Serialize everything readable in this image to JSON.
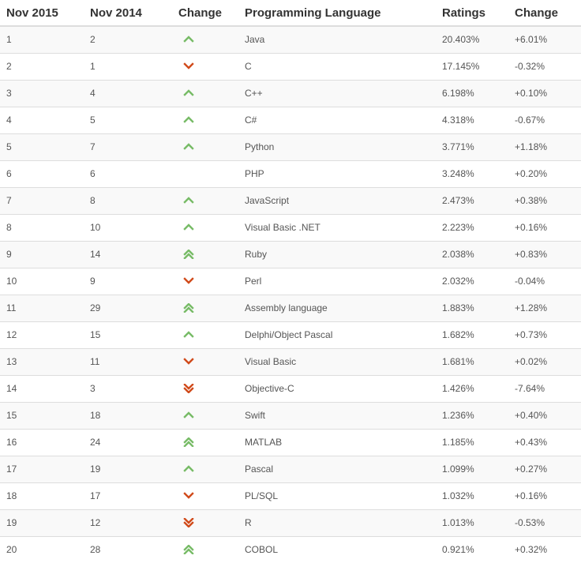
{
  "columns": [
    "Nov 2015",
    "Nov 2014",
    "Change",
    "Programming Language",
    "Ratings",
    "Change"
  ],
  "colors": {
    "up": "#77bb66",
    "down": "#d04a1a"
  },
  "rows": [
    {
      "nov2015": "1",
      "nov2014": "2",
      "trend": "up",
      "language": "Java",
      "rating": "20.403%",
      "change": "+6.01%"
    },
    {
      "nov2015": "2",
      "nov2014": "1",
      "trend": "down",
      "language": "C",
      "rating": "17.145%",
      "change": "-0.32%"
    },
    {
      "nov2015": "3",
      "nov2014": "4",
      "trend": "up",
      "language": "C++",
      "rating": "6.198%",
      "change": "+0.10%"
    },
    {
      "nov2015": "4",
      "nov2014": "5",
      "trend": "up",
      "language": "C#",
      "rating": "4.318%",
      "change": "-0.67%"
    },
    {
      "nov2015": "5",
      "nov2014": "7",
      "trend": "up",
      "language": "Python",
      "rating": "3.771%",
      "change": "+1.18%"
    },
    {
      "nov2015": "6",
      "nov2014": "6",
      "trend": "none",
      "language": "PHP",
      "rating": "3.248%",
      "change": "+0.20%"
    },
    {
      "nov2015": "7",
      "nov2014": "8",
      "trend": "up",
      "language": "JavaScript",
      "rating": "2.473%",
      "change": "+0.38%"
    },
    {
      "nov2015": "8",
      "nov2014": "10",
      "trend": "up",
      "language": "Visual Basic .NET",
      "rating": "2.223%",
      "change": "+0.16%"
    },
    {
      "nov2015": "9",
      "nov2014": "14",
      "trend": "up-double",
      "language": "Ruby",
      "rating": "2.038%",
      "change": "+0.83%"
    },
    {
      "nov2015": "10",
      "nov2014": "9",
      "trend": "down",
      "language": "Perl",
      "rating": "2.032%",
      "change": "-0.04%"
    },
    {
      "nov2015": "11",
      "nov2014": "29",
      "trend": "up-double",
      "language": "Assembly language",
      "rating": "1.883%",
      "change": "+1.28%"
    },
    {
      "nov2015": "12",
      "nov2014": "15",
      "trend": "up",
      "language": "Delphi/Object Pascal",
      "rating": "1.682%",
      "change": "+0.73%"
    },
    {
      "nov2015": "13",
      "nov2014": "11",
      "trend": "down",
      "language": "Visual Basic",
      "rating": "1.681%",
      "change": "+0.02%"
    },
    {
      "nov2015": "14",
      "nov2014": "3",
      "trend": "down-double",
      "language": "Objective-C",
      "rating": "1.426%",
      "change": "-7.64%"
    },
    {
      "nov2015": "15",
      "nov2014": "18",
      "trend": "up",
      "language": "Swift",
      "rating": "1.236%",
      "change": "+0.40%"
    },
    {
      "nov2015": "16",
      "nov2014": "24",
      "trend": "up-double",
      "language": "MATLAB",
      "rating": "1.185%",
      "change": "+0.43%"
    },
    {
      "nov2015": "17",
      "nov2014": "19",
      "trend": "up",
      "language": "Pascal",
      "rating": "1.099%",
      "change": "+0.27%"
    },
    {
      "nov2015": "18",
      "nov2014": "17",
      "trend": "down",
      "language": "PL/SQL",
      "rating": "1.032%",
      "change": "+0.16%"
    },
    {
      "nov2015": "19",
      "nov2014": "12",
      "trend": "down-double",
      "language": "R",
      "rating": "1.013%",
      "change": "-0.53%"
    },
    {
      "nov2015": "20",
      "nov2014": "28",
      "trend": "up-double",
      "language": "COBOL",
      "rating": "0.921%",
      "change": "+0.32%"
    }
  ]
}
